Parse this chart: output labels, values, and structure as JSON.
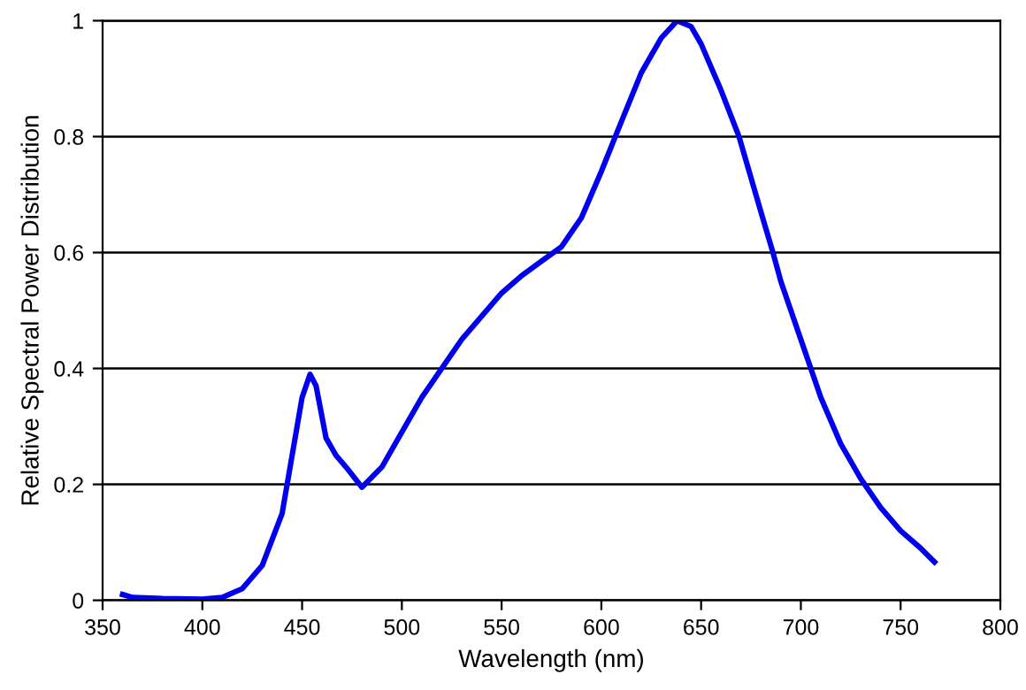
{
  "chart_data": {
    "type": "line",
    "xlabel": "Wavelength (nm)",
    "ylabel": "Relative Spectral Power Distribution",
    "xlim": [
      350,
      800
    ],
    "xticks": [
      350,
      400,
      450,
      500,
      550,
      600,
      650,
      700,
      750,
      800
    ],
    "ylim": [
      0,
      1
    ],
    "yticks": [
      0,
      0.2,
      0.4,
      0.6,
      0.8,
      1
    ],
    "grid": "y",
    "legend": false,
    "marker": "none",
    "line_style": "solid",
    "series": [
      {
        "color": "#0000ee",
        "x": [
          360,
          365,
          380,
          400,
          410,
          420,
          430,
          440,
          445,
          450,
          454,
          457,
          462,
          467,
          472,
          480,
          490,
          500,
          510,
          520,
          530,
          540,
          550,
          560,
          570,
          580,
          590,
          600,
          607,
          620,
          630,
          638,
          645,
          650,
          660,
          669,
          680,
          686,
          690,
          700,
          705,
          710,
          720,
          730,
          740,
          750,
          760,
          767
        ],
        "values": [
          0.01,
          0.005,
          0.003,
          0.002,
          0.005,
          0.02,
          0.06,
          0.15,
          0.25,
          0.35,
          0.39,
          0.37,
          0.28,
          0.25,
          0.23,
          0.195,
          0.23,
          0.29,
          0.35,
          0.4,
          0.45,
          0.49,
          0.53,
          0.56,
          0.585,
          0.61,
          0.66,
          0.74,
          0.8,
          0.91,
          0.97,
          1.0,
          0.99,
          0.96,
          0.88,
          0.8,
          0.67,
          0.6,
          0.55,
          0.45,
          0.4,
          0.35,
          0.27,
          0.21,
          0.16,
          0.12,
          0.09,
          0.066
        ]
      }
    ]
  }
}
